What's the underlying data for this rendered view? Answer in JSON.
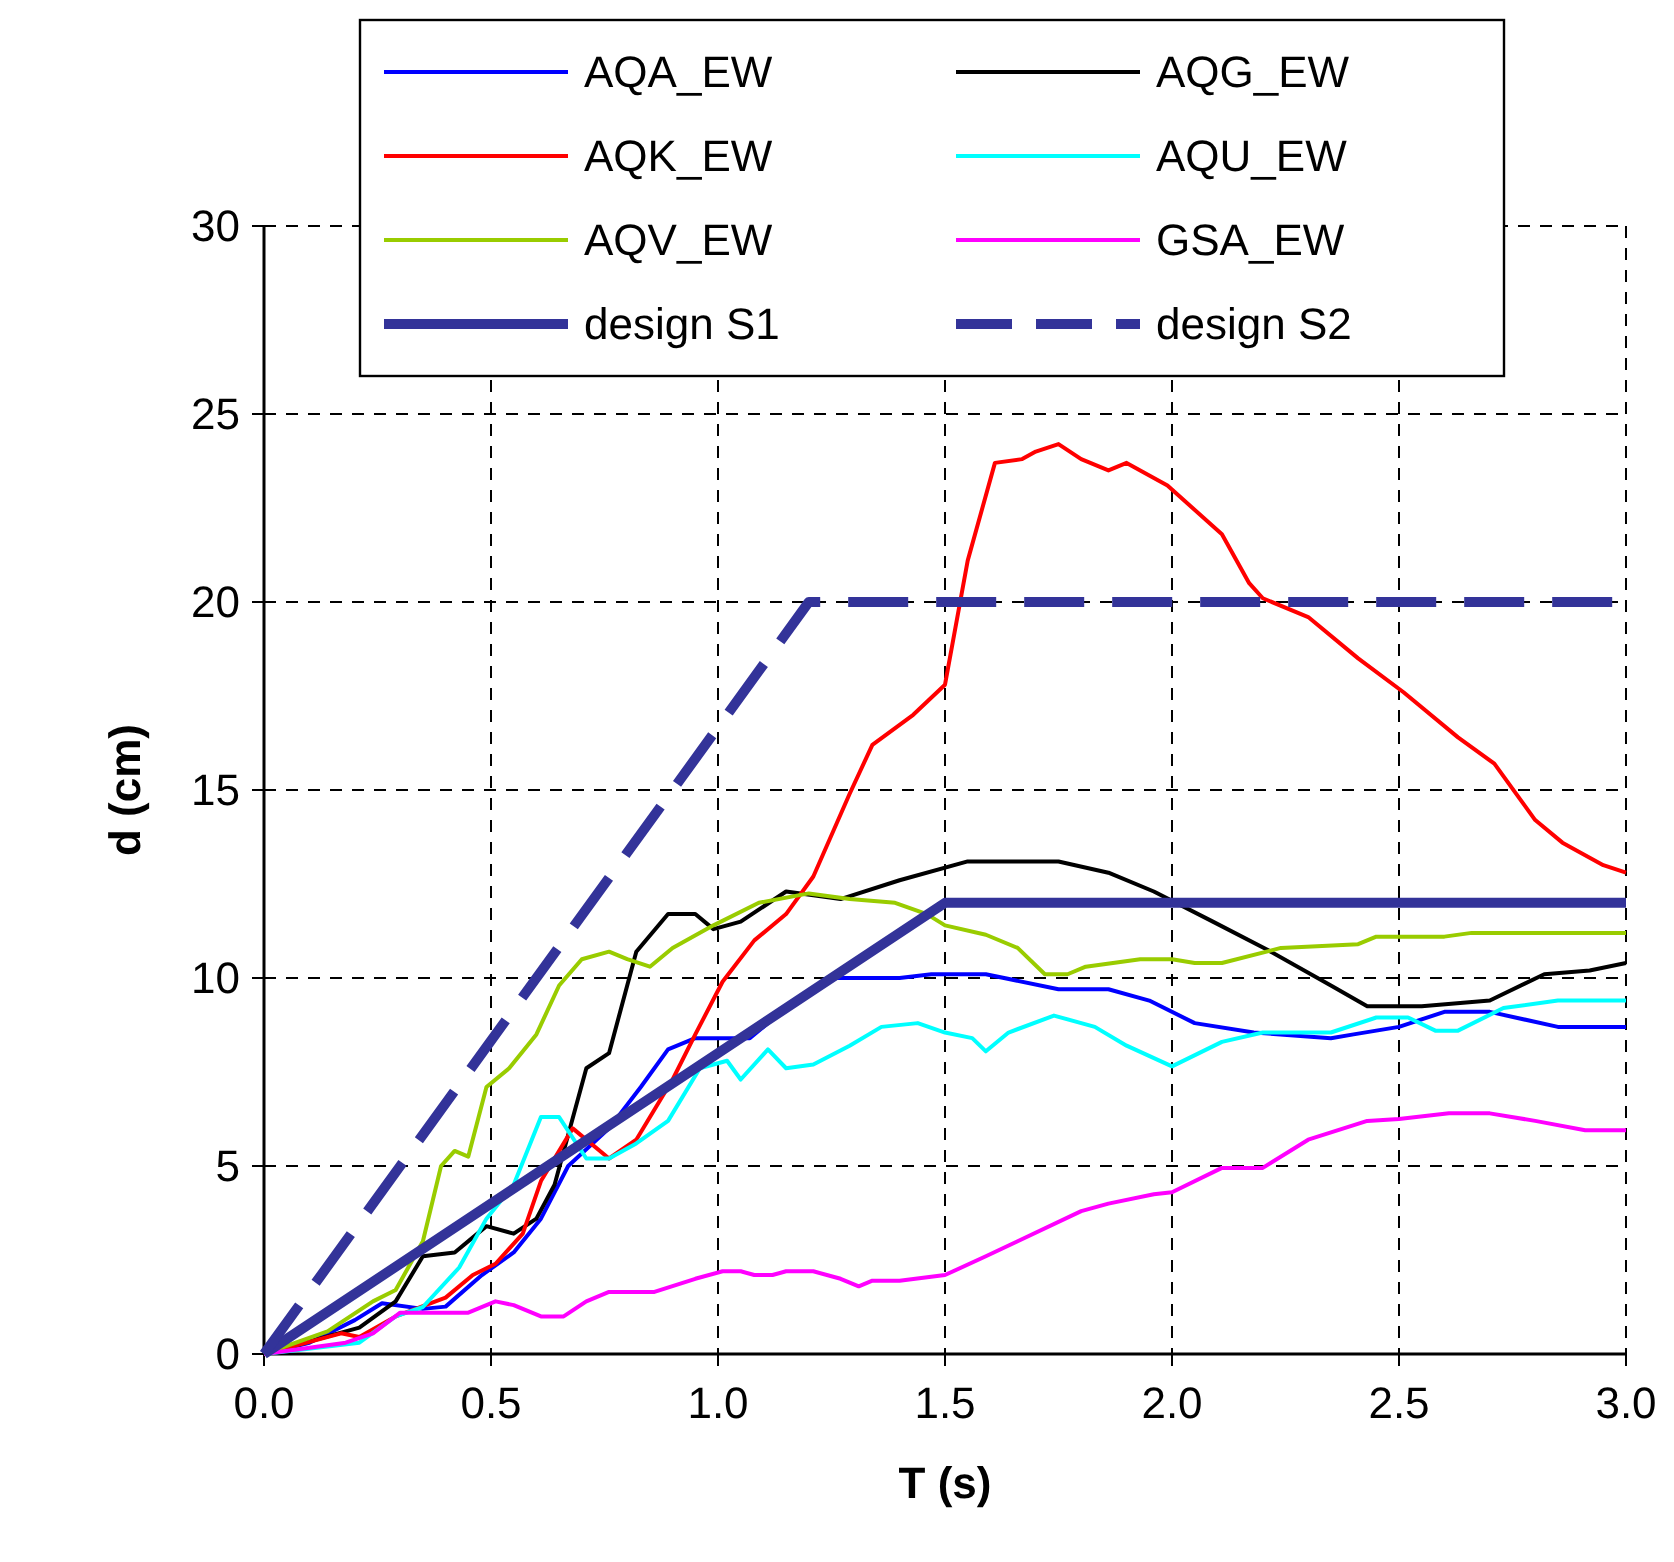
{
  "chart_data": {
    "type": "line",
    "xlabel": "T (s)",
    "ylabel": "d (cm)",
    "xlim": [
      0,
      3
    ],
    "ylim": [
      0,
      30
    ],
    "xticks": [
      {
        "value": 0,
        "label": "0.0"
      },
      {
        "value": 0.5,
        "label": "0.5"
      },
      {
        "value": 1,
        "label": "1.0"
      },
      {
        "value": 1.5,
        "label": "1.5"
      },
      {
        "value": 2,
        "label": "2.0"
      },
      {
        "value": 2.5,
        "label": "2.5"
      },
      {
        "value": 3,
        "label": "3.0"
      }
    ],
    "yticks": [
      0,
      5,
      10,
      15,
      20,
      25,
      30
    ],
    "grid": true,
    "legend": "top",
    "marker": "none",
    "series": [
      {
        "name": "AQA_EW",
        "color": "#0000ff",
        "x": [
          0,
          0.1,
          0.2,
          0.26,
          0.35,
          0.4,
          0.48,
          0.55,
          0.61,
          0.67,
          0.76,
          0.83,
          0.89,
          0.95,
          1.07,
          1.15,
          1.26,
          1.4,
          1.47,
          1.59,
          1.75,
          1.86,
          1.95,
          2.05,
          2.18,
          2.35,
          2.4,
          2.5,
          2.6,
          2.7,
          2.85,
          3.0
        ],
        "values": [
          0,
          0.3,
          0.9,
          1.35,
          1.2,
          1.26,
          2.1,
          2.7,
          3.6,
          5,
          6,
          7.1,
          8.1,
          8.4,
          8.4,
          9.2,
          10,
          10,
          10.1,
          10.1,
          9.7,
          9.7,
          9.4,
          8.8,
          8.55,
          8.4,
          8.5,
          8.7,
          9.1,
          9.1,
          8.7,
          8.7
        ]
      },
      {
        "name": "AQG_EW",
        "color": "#000000",
        "x": [
          0,
          0.21,
          0.29,
          0.35,
          0.42,
          0.49,
          0.55,
          0.6,
          0.64,
          0.71,
          0.76,
          0.82,
          0.89,
          0.95,
          0.99,
          1.05,
          1.15,
          1.27,
          1.4,
          1.55,
          1.75,
          1.86,
          1.96,
          2.09,
          2.21,
          2.35,
          2.43,
          2.55,
          2.7,
          2.82,
          2.92,
          3.0
        ],
        "values": [
          0,
          0.7,
          1.4,
          2.6,
          2.7,
          3.4,
          3.2,
          3.6,
          4.5,
          7.6,
          8,
          10.7,
          11.7,
          11.7,
          11.3,
          11.5,
          12.3,
          12.1,
          12.6,
          13.1,
          13.1,
          12.8,
          12.3,
          11.5,
          10.75,
          9.8,
          9.25,
          9.25,
          9.4,
          10.1,
          10.2,
          10.4
        ]
      },
      {
        "name": "AQK_EW",
        "color": "#ff0000",
        "x": [
          0,
          0.17,
          0.21,
          0.29,
          0.4,
          0.46,
          0.51,
          0.57,
          0.61,
          0.68,
          0.76,
          0.82,
          0.9,
          0.95,
          1.01,
          1.08,
          1.15,
          1.21,
          1.29,
          1.34,
          1.43,
          1.5,
          1.55,
          1.61,
          1.67,
          1.7,
          1.75,
          1.8,
          1.86,
          1.9,
          1.99,
          2.11,
          2.17,
          2.2,
          2.3,
          2.41,
          2.51,
          2.63,
          2.71,
          2.8,
          2.86,
          2.95,
          3.0
        ],
        "values": [
          0,
          0.55,
          0.45,
          1,
          1.5,
          2.1,
          2.4,
          3.2,
          4.6,
          6,
          5.2,
          5.7,
          7.3,
          8.5,
          9.9,
          11,
          11.7,
          12.7,
          14.9,
          16.2,
          17,
          17.8,
          21.1,
          23.7,
          23.8,
          24,
          24.2,
          23.8,
          23.5,
          23.7,
          23.1,
          21.8,
          20.5,
          20.1,
          19.6,
          18.5,
          17.6,
          16.4,
          15.7,
          14.2,
          13.6,
          13,
          12.8
        ]
      },
      {
        "name": "AQU_EW",
        "color": "#00ffff",
        "x": [
          0,
          0.21,
          0.29,
          0.35,
          0.43,
          0.49,
          0.55,
          0.61,
          0.65,
          0.71,
          0.76,
          0.82,
          0.89,
          0.96,
          1.02,
          1.05,
          1.11,
          1.15,
          1.21,
          1.29,
          1.36,
          1.44,
          1.5,
          1.56,
          1.59,
          1.64,
          1.74,
          1.83,
          1.9,
          2.0,
          2.11,
          2.2,
          2.35,
          2.45,
          2.52,
          2.58,
          2.63,
          2.73,
          2.85,
          3.0
        ],
        "values": [
          0,
          0.3,
          1,
          1.25,
          2.3,
          3.6,
          4.5,
          6.3,
          6.3,
          5.2,
          5.2,
          5.6,
          6.2,
          7.6,
          7.8,
          7.3,
          8.1,
          7.6,
          7.7,
          8.2,
          8.7,
          8.8,
          8.55,
          8.4,
          8.05,
          8.55,
          9,
          8.7,
          8.2,
          7.65,
          8.3,
          8.55,
          8.55,
          8.95,
          8.95,
          8.6,
          8.6,
          9.2,
          9.4,
          9.4
        ]
      },
      {
        "name": "AQV_EW",
        "color": "#99cc00",
        "x": [
          0,
          0.14,
          0.24,
          0.29,
          0.35,
          0.39,
          0.42,
          0.45,
          0.49,
          0.54,
          0.6,
          0.65,
          0.7,
          0.76,
          0.8,
          0.85,
          0.9,
          0.99,
          1.09,
          1.2,
          1.29,
          1.39,
          1.46,
          1.5,
          1.59,
          1.66,
          1.72,
          1.77,
          1.81,
          1.93,
          2.0,
          2.05,
          2.11,
          2.24,
          2.41,
          2.45,
          2.6,
          2.66,
          3.0
        ],
        "values": [
          0,
          0.6,
          1.4,
          1.7,
          3,
          5,
          5.4,
          5.25,
          7.1,
          7.6,
          8.5,
          9.8,
          10.5,
          10.7,
          10.5,
          10.3,
          10.8,
          11.4,
          12,
          12.25,
          12.1,
          12,
          11.7,
          11.4,
          11.15,
          10.8,
          10.1,
          10.1,
          10.3,
          10.5,
          10.5,
          10.4,
          10.4,
          10.8,
          10.9,
          11.1,
          11.1,
          11.2,
          11.2
        ]
      },
      {
        "name": "GSA_EW",
        "color": "#ff00ff",
        "x": [
          0,
          0.18,
          0.24,
          0.3,
          0.45,
          0.51,
          0.55,
          0.61,
          0.66,
          0.71,
          0.76,
          0.86,
          0.95,
          1.01,
          1.05,
          1.08,
          1.12,
          1.15,
          1.21,
          1.27,
          1.31,
          1.34,
          1.4,
          1.5,
          1.59,
          1.66,
          1.8,
          1.86,
          1.96,
          2.0,
          2.11,
          2.2,
          2.3,
          2.43,
          2.5,
          2.61,
          2.7,
          2.8,
          2.91,
          3.0
        ],
        "values": [
          0,
          0.3,
          0.55,
          1.1,
          1.1,
          1.4,
          1.3,
          1,
          1,
          1.4,
          1.65,
          1.65,
          2,
          2.2,
          2.2,
          2.1,
          2.1,
          2.2,
          2.2,
          2,
          1.8,
          1.95,
          1.95,
          2.1,
          2.6,
          3,
          3.8,
          4,
          4.25,
          4.3,
          4.95,
          4.95,
          5.7,
          6.2,
          6.25,
          6.4,
          6.4,
          6.2,
          5.95,
          5.95
        ]
      },
      {
        "name": "design S1",
        "color": "#333399",
        "line_style": "solid",
        "x": [
          0,
          1.5,
          3.0
        ],
        "values": [
          0,
          12,
          12
        ]
      },
      {
        "name": "design S2",
        "color": "#333399",
        "line_style": "dashed",
        "x": [
          0,
          1.2,
          3.0
        ],
        "values": [
          0,
          20,
          20
        ]
      }
    ]
  }
}
